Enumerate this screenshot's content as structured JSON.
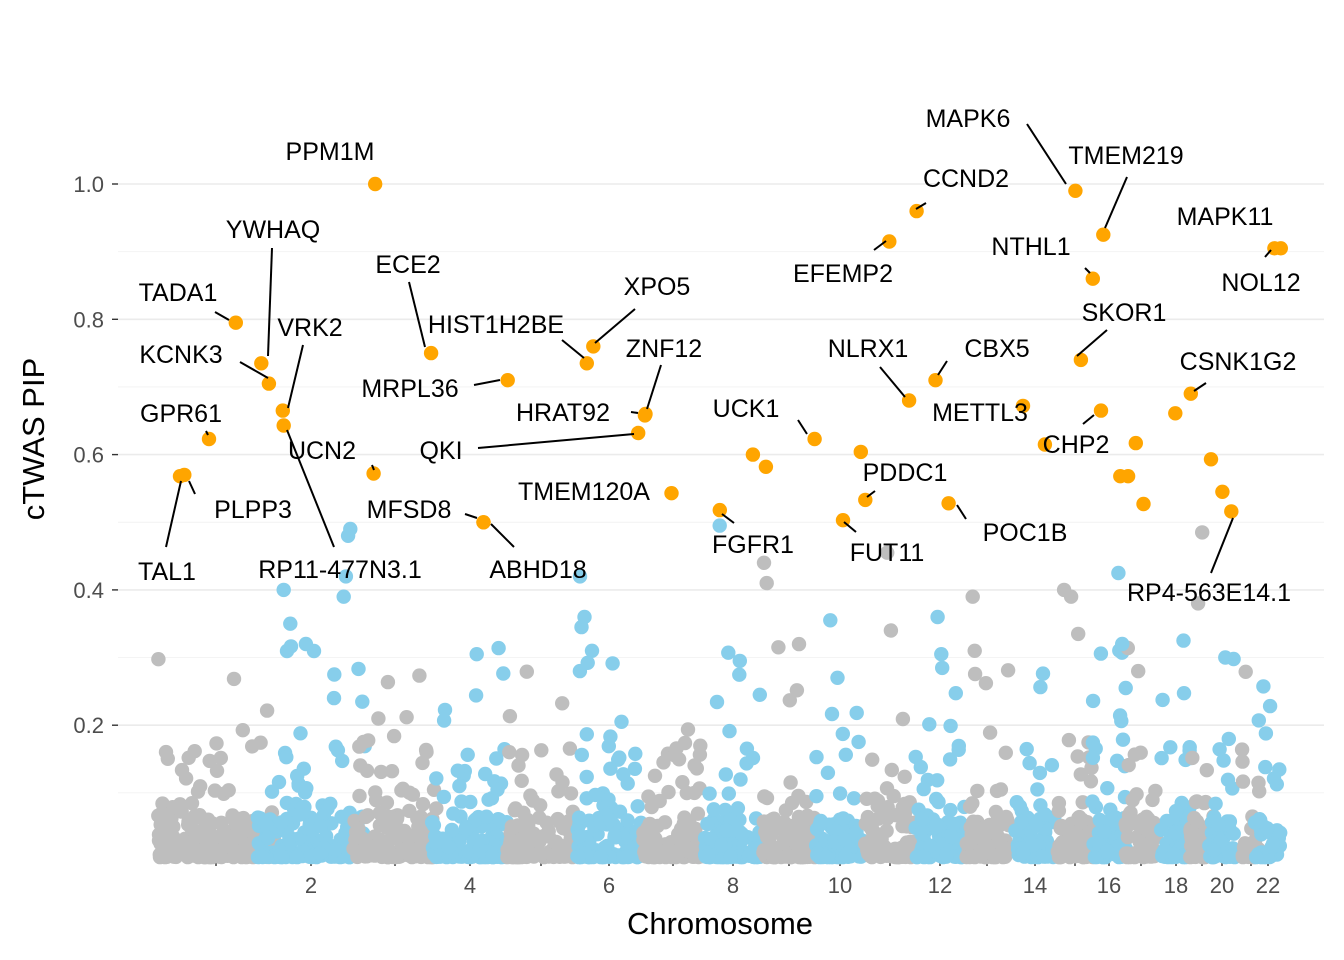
{
  "chart_data": {
    "type": "scatter",
    "xlabel": "Chromosome",
    "ylabel": "cTWAS PIP",
    "ylim": [
      0,
      1.0
    ],
    "y_ticks": [
      0.2,
      0.4,
      0.6,
      0.8,
      1.0
    ],
    "y_tick_labels": [
      "0.2",
      "0.4",
      "0.6",
      "0.8",
      "1.0"
    ],
    "x_tick_labels": [
      {
        "chrom": 1,
        "label": ""
      },
      {
        "chrom": 2,
        "label": "2"
      },
      {
        "chrom": 3,
        "label": ""
      },
      {
        "chrom": 4,
        "label": "4"
      },
      {
        "chrom": 5,
        "label": ""
      },
      {
        "chrom": 6,
        "label": "6"
      },
      {
        "chrom": 7,
        "label": ""
      },
      {
        "chrom": 8,
        "label": "8"
      },
      {
        "chrom": 9,
        "label": ""
      },
      {
        "chrom": 10,
        "label": "10"
      },
      {
        "chrom": 11,
        "label": ""
      },
      {
        "chrom": 12,
        "label": "12"
      },
      {
        "chrom": 13,
        "label": ""
      },
      {
        "chrom": 14,
        "label": "14"
      },
      {
        "chrom": 15,
        "label": ""
      },
      {
        "chrom": 16,
        "label": "16"
      },
      {
        "chrom": 17,
        "label": ""
      },
      {
        "chrom": 18,
        "label": "18"
      },
      {
        "chrom": 19,
        "label": ""
      },
      {
        "chrom": 20,
        "label": "20"
      },
      {
        "chrom": 21,
        "label": ""
      },
      {
        "chrom": 22,
        "label": "22"
      }
    ],
    "colors": {
      "odd_chromosome": "#bebebe",
      "even_chromosome": "#87ceeb",
      "highlight": "#ffa500",
      "grid": "#ebebeb",
      "text": "#4d4d4d"
    },
    "chromosome_sizes_mb": [
      249,
      243,
      198,
      190,
      182,
      171,
      159,
      145,
      138,
      134,
      135,
      133,
      114,
      107,
      102,
      90,
      83,
      80,
      59,
      64,
      47,
      51
    ],
    "highlight_threshold": 0.5,
    "labeled_genes": [
      {
        "gene": "PPM1M",
        "chrom": 3,
        "pos_mb": 52.3,
        "pip": 1.0
      },
      {
        "gene": "MAPK6",
        "chrom": 15,
        "pos_mb": 52.0,
        "pip": 0.99
      },
      {
        "gene": "CCND2",
        "chrom": 12,
        "pos_mb": 4.3,
        "pip": 0.96
      },
      {
        "gene": "TMEM219",
        "chrom": 16,
        "pos_mb": 29.9,
        "pip": 0.925
      },
      {
        "gene": "EFEMP2",
        "chrom": 11,
        "pos_mb": 65.6,
        "pip": 0.915
      },
      {
        "gene": "MAPK11",
        "chrom": 22,
        "pos_mb": 50.7,
        "pip": 0.905
      },
      {
        "gene": "NOL12",
        "chrom": 22,
        "pos_mb": 38.0,
        "pip": 0.905
      },
      {
        "gene": "NTHL1",
        "chrom": 16,
        "pos_mb": 2.1,
        "pip": 0.86
      },
      {
        "gene": "TADA1",
        "chrom": 1,
        "pos_mb": 166.9,
        "pip": 0.795
      },
      {
        "gene": "XPO5",
        "chrom": 6,
        "pos_mb": 43.5,
        "pip": 0.76
      },
      {
        "gene": "HIST1H2BE",
        "chrom": 6,
        "pos_mb": 26.2,
        "pip": 0.735
      },
      {
        "gene": "ECE2",
        "chrom": 3,
        "pos_mb": 184.0,
        "pip": 0.75
      },
      {
        "gene": "SKOR1",
        "chrom": 15,
        "pos_mb": 67.8,
        "pip": 0.74
      },
      {
        "gene": "YWHAQ",
        "chrom": 2,
        "pos_mb": 9.7,
        "pip": 0.735
      },
      {
        "gene": "KCNK3",
        "chrom": 2,
        "pos_mb": 26.7,
        "pip": 0.705
      },
      {
        "gene": "NLRX1",
        "chrom": 11,
        "pos_mb": 119.0,
        "pip": 0.68
      },
      {
        "gene": "CBX5",
        "chrom": 12,
        "pos_mb": 54.6,
        "pip": 0.71
      },
      {
        "gene": "MRPL36",
        "chrom": 5,
        "pos_mb": 1.8,
        "pip": 0.71
      },
      {
        "gene": "CSNK1G2",
        "chrom": 19,
        "pos_mb": 2.0,
        "pip": 0.69
      },
      {
        "gene": "VRK2",
        "chrom": 2,
        "pos_mb": 58.1,
        "pip": 0.665
      },
      {
        "gene": "METTL3",
        "chrom": 14,
        "pos_mb": 21.5,
        "pip": 0.672
      },
      {
        "gene": "CHP2",
        "chrom": 16,
        "pos_mb": 23.8,
        "pip": 0.665
      },
      {
        "gene": "ZNF12",
        "chrom": 7,
        "pos_mb": 6.7,
        "pip": 0.66
      },
      {
        "gene": "HRAT92",
        "chrom": 7,
        "pos_mb": 5.0,
        "pip": 0.658
      },
      {
        "gene": "RP11-477N3.1",
        "chrom": 2,
        "pos_mb": 60.0,
        "pip": 0.643
      },
      {
        "gene": "UCK1",
        "chrom": 9,
        "pos_mb": 134.4,
        "pip": 0.623
      },
      {
        "gene": "QKI",
        "chrom": 6,
        "pos_mb": 163.5,
        "pip": 0.632
      },
      {
        "gene": "GPR61",
        "chrom": 1,
        "pos_mb": 109.5,
        "pip": 0.623
      },
      {
        "gene": "UCN2",
        "chrom": 3,
        "pos_mb": 48.6,
        "pip": 0.572
      },
      {
        "gene": "TAL1",
        "chrom": 1,
        "pos_mb": 47.2,
        "pip": 0.568
      },
      {
        "gene": "PLPP3",
        "chrom": 1,
        "pos_mb": 56.5,
        "pip": 0.57
      },
      {
        "gene": "PDDC1",
        "chrom": 11,
        "pos_mb": 0.8,
        "pip": 0.533
      },
      {
        "gene": "TMEM120A",
        "chrom": 7,
        "pos_mb": 75.6,
        "pip": 0.543
      },
      {
        "gene": "POC1B",
        "chrom": 12,
        "pos_mb": 89.4,
        "pip": 0.528
      },
      {
        "gene": "FGFR1",
        "chrom": 8,
        "pos_mb": 38.4,
        "pip": 0.518
      },
      {
        "gene": "RP4-563E14.1",
        "chrom": 20,
        "pos_mb": 55.0,
        "pip": 0.516
      },
      {
        "gene": "FUT11",
        "chrom": 10,
        "pos_mb": 75.5,
        "pip": 0.503
      },
      {
        "gene": "MFSD8",
        "chrom": 4,
        "pos_mb": 128.8,
        "pip": 0.5
      },
      {
        "gene": "ABHD18",
        "chrom": 4,
        "pos_mb": 128.8,
        "pip": 0.5
      }
    ],
    "other_highlighted_points": [
      {
        "chrom": 8,
        "pos_mb": 124.0,
        "pip": 0.6
      },
      {
        "chrom": 9,
        "pos_mb": 10.0,
        "pip": 0.582
      },
      {
        "chrom": 10,
        "pos_mb": 125.0,
        "pip": 0.604
      },
      {
        "chrom": 14,
        "pos_mb": 80.0,
        "pip": 0.615
      },
      {
        "chrom": 16,
        "pos_mb": 75.0,
        "pip": 0.568
      },
      {
        "chrom": 17,
        "pos_mb": 8.0,
        "pip": 0.568
      },
      {
        "chrom": 17,
        "pos_mb": 28.0,
        "pip": 0.617
      },
      {
        "chrom": 17,
        "pos_mb": 48.0,
        "pip": 0.527
      },
      {
        "chrom": 18,
        "pos_mb": 38.0,
        "pip": 0.661
      },
      {
        "chrom": 20,
        "pos_mb": 5.0,
        "pip": 0.593
      },
      {
        "chrom": 20,
        "pos_mb": 33.0,
        "pip": 0.545
      }
    ],
    "background_points_note": "about 3,500 additional genes with PIP mostly below 0.2 and a few up to 0.5, coloured grey on odd and sky-blue on even chromosomes"
  }
}
